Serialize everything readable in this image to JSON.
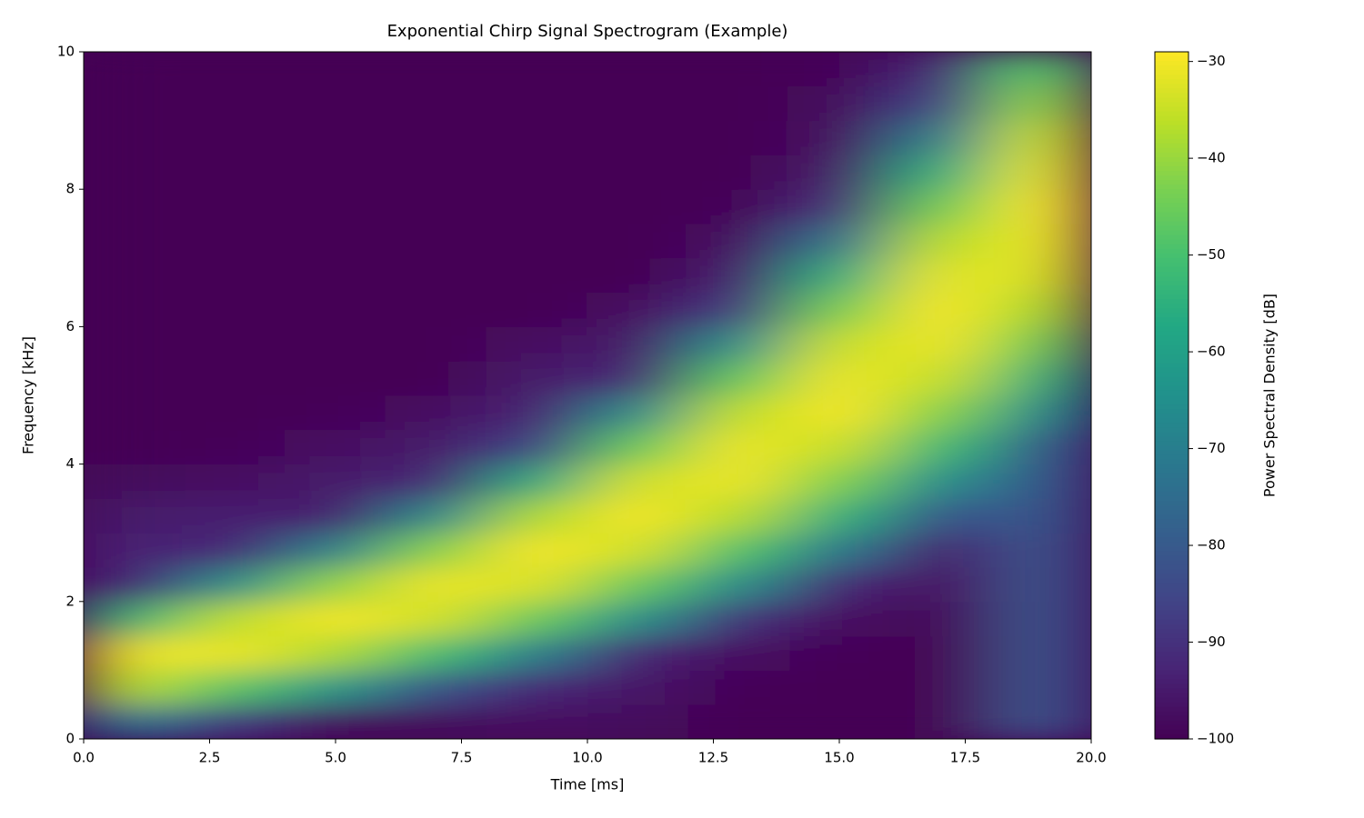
{
  "chart_data": {
    "type": "heatmap",
    "title": "Exponential Chirp Signal Spectrogram (Example)",
    "x_label": "Time [ms]",
    "y_label": "Frequency [kHz]",
    "colorbar_label": "Power Spectral Density [dB]",
    "colormap": "viridis",
    "x_edges": [
      0,
      2,
      4,
      6,
      8,
      10,
      12,
      14,
      16,
      18,
      20
    ],
    "y_edges": [
      0,
      0.5,
      1,
      1.5,
      2,
      2.5,
      3,
      3.5,
      4,
      4.5,
      5,
      5.5,
      6,
      6.5,
      7,
      7.5,
      8,
      8.5,
      9,
      9.5,
      10
    ],
    "z": [
      [
        -72,
        -37,
        -31,
        -53,
        -92,
        -93,
        -95,
        -98,
        -100,
        -100,
        -100,
        -100,
        -100,
        -100,
        -100,
        -100,
        -100,
        -100,
        -100,
        -100
      ],
      [
        -88,
        -48,
        -31,
        -36,
        -65,
        -92,
        -94,
        -97,
        -99,
        -100,
        -100,
        -100,
        -100,
        -100,
        -100,
        -100,
        -100,
        -100,
        -100,
        -100
      ],
      [
        -98,
        -63,
        -38,
        -30,
        -41,
        -69,
        -94,
        -95,
        -97,
        -99,
        -100,
        -100,
        -100,
        -100,
        -100,
        -100,
        -100,
        -100,
        -100,
        -100
      ],
      [
        -98,
        -82,
        -51,
        -34,
        -31,
        -42,
        -67,
        -92,
        -95,
        -97,
        -100,
        -100,
        -100,
        -100,
        -100,
        -100,
        -100,
        -100,
        -100,
        -100
      ],
      [
        -97,
        -92,
        -70,
        -46,
        -33,
        -30,
        -38,
        -57,
        -86,
        -93,
        -95,
        -97,
        -100,
        -100,
        -100,
        -100,
        -100,
        -100,
        -100,
        -100
      ],
      [
        -98,
        -96,
        -93,
        -65,
        -46,
        -34,
        -30,
        -34,
        -46,
        -66,
        -92,
        -95,
        -97,
        -100,
        -100,
        -100,
        -100,
        -100,
        -100,
        -100
      ],
      [
        -100,
        -99,
        -97,
        -90,
        -66,
        -49,
        -37,
        -31,
        -31,
        -36,
        -47,
        -65,
        -88,
        -94,
        -97,
        -99,
        -100,
        -100,
        -100,
        -100
      ],
      [
        -100,
        -100,
        -99,
        -97,
        -92,
        -72,
        -55,
        -43,
        -35,
        -30,
        -31,
        -35,
        -44,
        -56,
        -73,
        -91,
        -95,
        -97,
        -98,
        -99
      ],
      [
        -100,
        -100,
        -100,
        -99,
        -97,
        -94,
        -81,
        -65,
        -52,
        -42,
        -35,
        -31,
        -30,
        -32,
        -37,
        -45,
        -56,
        -70,
        -86,
        -92
      ],
      [
        -82,
        -82,
        -82,
        -82,
        -82,
        -82,
        -81,
        -80,
        -78,
        -65,
        -54,
        -45,
        -38,
        -33,
        -31,
        -30,
        -32,
        -35,
        -41,
        -48
      ]
    ],
    "xlim": [
      0,
      20
    ],
    "xticks": [
      {
        "value": 0,
        "label": "0.0"
      },
      2.5,
      {
        "value": 5,
        "label": "5.0"
      },
      7.5,
      {
        "value": 10,
        "label": "10.0"
      },
      12.5,
      {
        "value": 15,
        "label": "15.0"
      },
      17.5,
      {
        "value": 20,
        "label": "20.0"
      }
    ],
    "ylim": [
      0,
      10
    ],
    "yticks": [
      0,
      2,
      4,
      6,
      8,
      10
    ],
    "clim": [
      -100,
      -29
    ],
    "cticks": [
      {
        "value": -30,
        "label": "−30"
      },
      {
        "value": -40,
        "label": "−40"
      },
      {
        "value": -50,
        "label": "−50"
      },
      {
        "value": -60,
        "label": "−60"
      },
      {
        "value": -70,
        "label": "−70"
      },
      {
        "value": -80,
        "label": "−80"
      },
      {
        "value": -90,
        "label": "−90"
      },
      {
        "value": -100,
        "label": "−100"
      }
    ]
  }
}
